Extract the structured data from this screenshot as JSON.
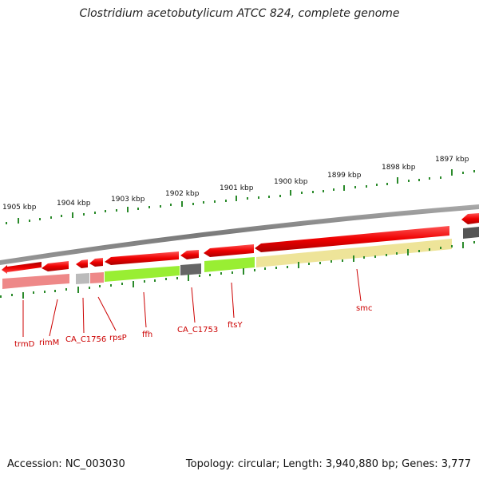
{
  "title": "Clostridium acetobutylicum ATCC 824, complete genome",
  "footer": {
    "accession": "Accession: NC_003030",
    "summary": "Topology: circular; Length: 3,940,880 bp; Genes: 3,777"
  },
  "colors": {
    "backbone": "#888888",
    "arrow": "#ee0000",
    "tick": "#2a8a2a",
    "label": "#cc0000",
    "cog_pink": "#ee8888",
    "cog_grey_light": "#bbbbbb",
    "cog_green": "#99ee33",
    "cog_grey_dark": "#666666",
    "cog_yellow": "#eee499"
  },
  "scale": {
    "unit": "kbp",
    "labels": [
      "1905 kbp",
      "1904 kbp",
      "1903 kbp",
      "1902 kbp",
      "1901 kbp",
      "1900 kbp",
      "1899 kbp",
      "1898 kbp",
      "1897 kbp"
    ]
  },
  "genes": [
    {
      "name": "trmD",
      "cog": "cog_pink"
    },
    {
      "name": "rimM",
      "cog": "cog_pink"
    },
    {
      "name": "CA_C1756",
      "cog": "cog_grey_light"
    },
    {
      "name": "rpsP",
      "cog": "cog_pink"
    },
    {
      "name": "ffh",
      "cog": "cog_green"
    },
    {
      "name": "CA_C1753",
      "cog": "cog_grey_dark"
    },
    {
      "name": "ftsY",
      "cog": "cog_green"
    },
    {
      "name": "smc",
      "cog": "cog_yellow"
    }
  ]
}
